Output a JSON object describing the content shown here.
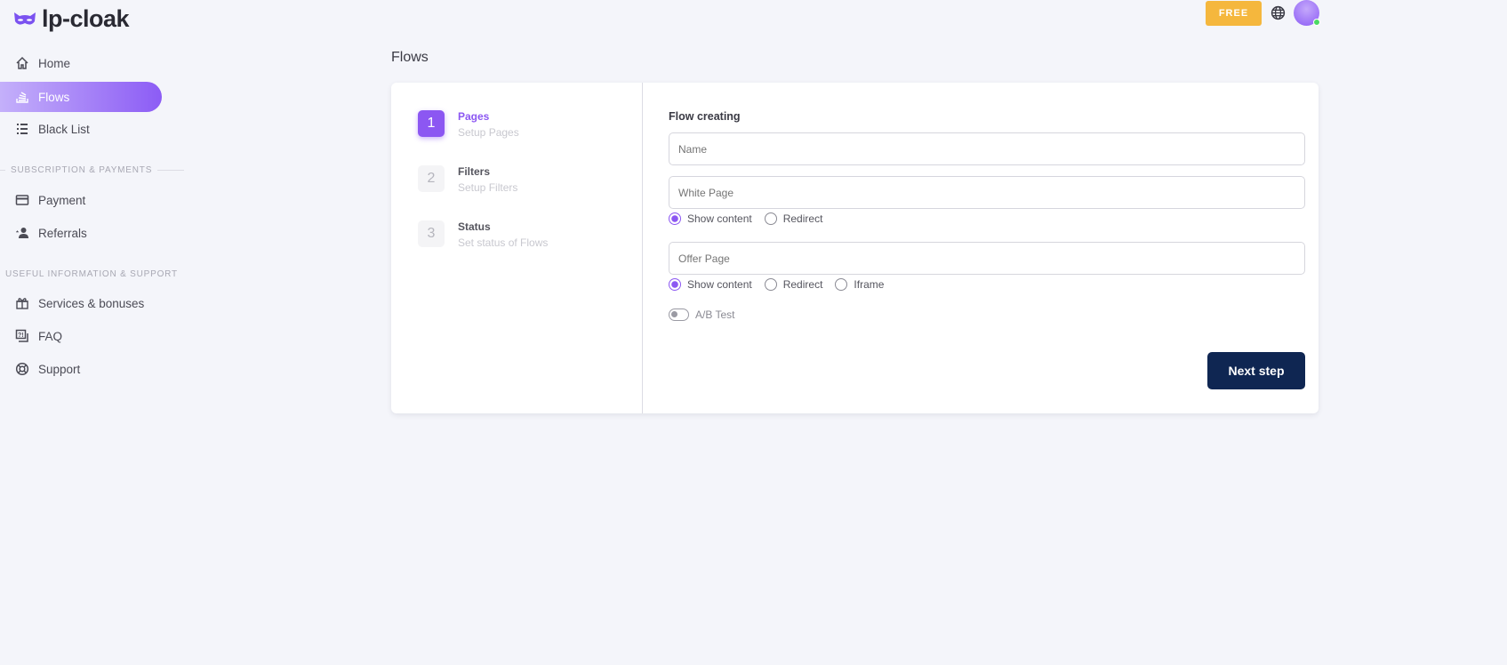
{
  "brand": {
    "name": "lp-cloak",
    "accent": "#8c57f2"
  },
  "header": {
    "plan_badge": "FREE"
  },
  "sidebar": {
    "items": [
      {
        "label": "Home",
        "icon": "home-icon"
      },
      {
        "label": "Flows",
        "icon": "flows-icon",
        "active": true
      },
      {
        "label": "Black List",
        "icon": "list-icon"
      }
    ],
    "section1": "SUBSCRIPTION & PAYMENTS",
    "items2": [
      {
        "label": "Payment",
        "icon": "credit-card-icon"
      },
      {
        "label": "Referrals",
        "icon": "user-star-icon"
      }
    ],
    "section2": "USEFUL INFORMATION & SUPPORT",
    "items3": [
      {
        "label": "Services & bonuses",
        "icon": "gift-icon"
      },
      {
        "label": "FAQ",
        "icon": "faq-icon"
      },
      {
        "label": "Support",
        "icon": "lifebuoy-icon"
      }
    ]
  },
  "page": {
    "title": "Flows"
  },
  "steps": [
    {
      "num": "1",
      "title": "Pages",
      "subtitle": "Setup Pages",
      "active": true
    },
    {
      "num": "2",
      "title": "Filters",
      "subtitle": "Setup Filters"
    },
    {
      "num": "3",
      "title": "Status",
      "subtitle": "Set status of Flows"
    }
  ],
  "form": {
    "heading": "Flow creating",
    "name_placeholder": "Name",
    "white_placeholder": "White Page",
    "white_options": [
      "Show content",
      "Redirect"
    ],
    "offer_placeholder": "Offer Page",
    "offer_options": [
      "Show content",
      "Redirect",
      "Iframe"
    ],
    "ab_test": "A/B Test",
    "ab_test_on": false,
    "next": "Next step"
  }
}
